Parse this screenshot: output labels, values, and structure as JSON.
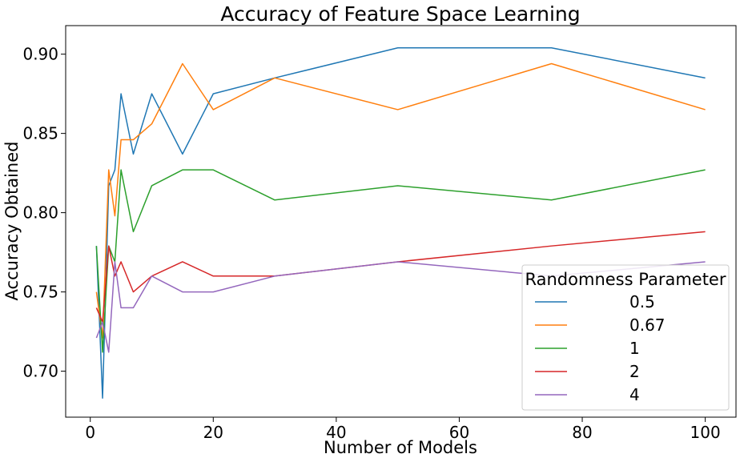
{
  "chart_data": {
    "type": "line",
    "title": "Accuracy of Feature Space Learning",
    "xlabel": "Number of Models",
    "ylabel": "Accuracy Obtained",
    "xlim": [
      -4,
      105
    ],
    "ylim": [
      0.671,
      0.918
    ],
    "xticks": [
      0,
      20,
      40,
      60,
      80,
      100
    ],
    "xtick_labels": [
      "0",
      "20",
      "40",
      "60",
      "80",
      "100"
    ],
    "yticks": [
      0.7,
      0.75,
      0.8,
      0.85,
      0.9
    ],
    "ytick_labels": [
      "0.70",
      "0.75",
      "0.80",
      "0.85",
      "0.90"
    ],
    "grid": false,
    "legend": {
      "title": "Randomness Parameter",
      "placement": "lower-right"
    },
    "x": [
      1,
      2,
      3,
      4,
      5,
      7,
      10,
      15,
      20,
      30,
      50,
      75,
      100
    ],
    "series": [
      {
        "name": "0.5",
        "color": "#1f77b4",
        "values": [
          0.779,
          0.683,
          0.817,
          0.827,
          0.875,
          0.837,
          0.875,
          0.837,
          0.875,
          0.885,
          0.904,
          0.904,
          0.885
        ]
      },
      {
        "name": "0.67",
        "color": "#ff7f0e",
        "values": [
          0.75,
          0.721,
          0.827,
          0.798,
          0.846,
          0.846,
          0.856,
          0.894,
          0.865,
          0.885,
          0.865,
          0.894,
          0.865
        ]
      },
      {
        "name": "1",
        "color": "#2ca02c",
        "values": [
          0.779,
          0.712,
          0.779,
          0.769,
          0.827,
          0.788,
          0.817,
          0.827,
          0.827,
          0.808,
          0.817,
          0.808,
          0.827
        ]
      },
      {
        "name": "2",
        "color": "#d62728",
        "values": [
          0.74,
          0.731,
          0.779,
          0.76,
          0.769,
          0.75,
          0.76,
          0.769,
          0.76,
          0.76,
          0.769,
          0.779,
          0.788
        ]
      },
      {
        "name": "4",
        "color": "#9467bd",
        "values": [
          0.721,
          0.731,
          0.712,
          0.769,
          0.74,
          0.74,
          0.76,
          0.75,
          0.75,
          0.76,
          0.769,
          0.76,
          0.769
        ]
      }
    ]
  }
}
